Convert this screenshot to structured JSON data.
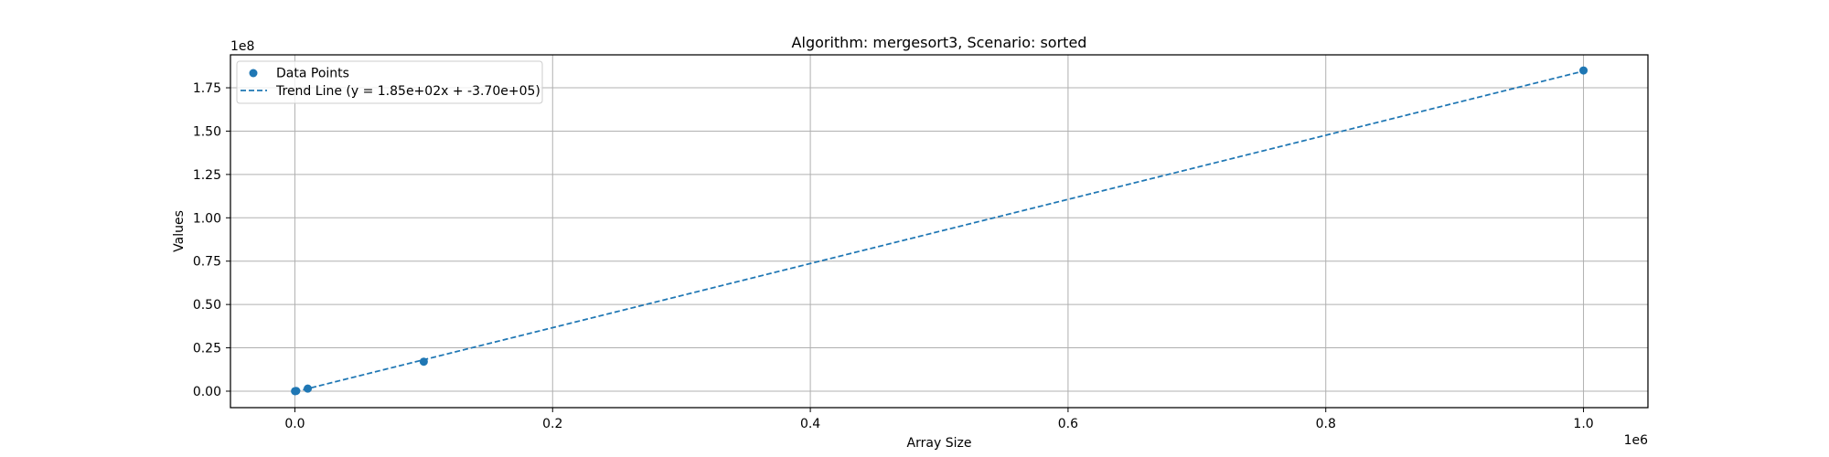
{
  "chart_data": {
    "type": "scatter",
    "title": "Algorithm: mergesort3, Scenario: sorted",
    "xlabel": "Array Size",
    "ylabel": "Values",
    "x_offset_label": "1e6",
    "y_offset_label": "1e8",
    "xlim": [
      -50000,
      1050000
    ],
    "ylim": [
      -9500000,
      194000000
    ],
    "x_ticks": [
      0,
      200000,
      400000,
      600000,
      800000,
      1000000
    ],
    "x_tick_labels": [
      "0.0",
      "0.2",
      "0.4",
      "0.6",
      "0.8",
      "1.0"
    ],
    "y_ticks": [
      0,
      25000000,
      50000000,
      75000000,
      100000000,
      125000000,
      150000000,
      175000000
    ],
    "y_tick_labels": [
      "0.00",
      "0.25",
      "0.50",
      "0.75",
      "1.00",
      "1.25",
      "1.50",
      "1.75"
    ],
    "grid": true,
    "legend_position": "upper-left",
    "series": [
      {
        "name": "Data Points",
        "kind": "scatter",
        "color": "#1f77b4",
        "x": [
          100,
          1000,
          10000,
          100000,
          1000000
        ],
        "y": [
          15000,
          150000,
          1500000,
          17000000,
          185000000
        ]
      },
      {
        "name": "Trend Line (y = 1.85e+02x + -3.70e+05)",
        "kind": "line",
        "style": "dashed",
        "color": "#1f77b4",
        "slope": 185,
        "intercept": -370000,
        "x": [
          100,
          1000,
          10000,
          100000,
          1000000
        ]
      }
    ]
  }
}
